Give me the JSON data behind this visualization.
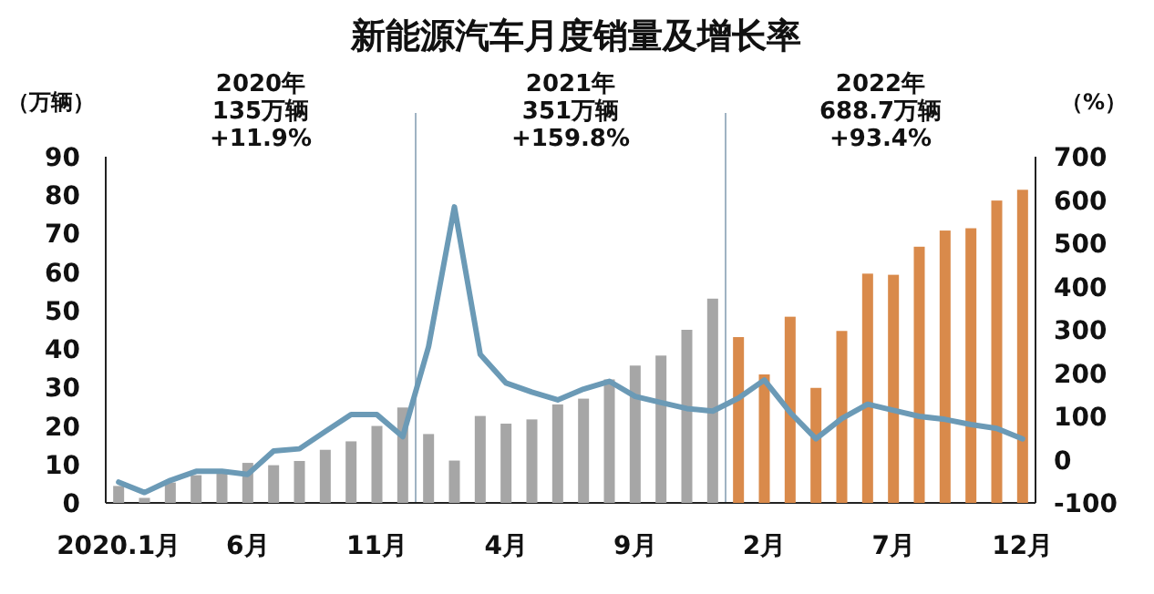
{
  "chart_data": {
    "type": "bar",
    "title": "新能源汽车月度销量及增长率",
    "ylabel": "（万辆）",
    "y2label": "（%）",
    "categories": [
      "2020.1月",
      null,
      null,
      null,
      null,
      "6月",
      null,
      null,
      null,
      null,
      "11月",
      null,
      null,
      null,
      null,
      "4月",
      null,
      null,
      null,
      null,
      "9月",
      null,
      null,
      null,
      null,
      "2月",
      null,
      null,
      null,
      null,
      "7月",
      null,
      null,
      null,
      null,
      "12月"
    ],
    "series": [
      {
        "values": [
          4.4,
          1.3,
          5.3,
          7.2,
          8.2,
          10.4,
          9.8,
          10.9,
          13.8,
          16,
          20,
          24.8,
          17.9,
          11,
          22.6,
          20.6,
          21.7,
          25.6,
          27.1,
          32.1,
          35.7,
          38.3,
          45,
          53.1,
          43.1,
          33.4,
          48.4,
          29.9,
          44.7,
          59.6,
          59.3,
          66.6,
          70.8,
          71.4,
          78.6,
          81.4
        ],
        "colors": [
          "#a6a6a6",
          "#a6a6a6",
          "#a6a6a6",
          "#a6a6a6",
          "#a6a6a6",
          "#a6a6a6",
          "#a6a6a6",
          "#a6a6a6",
          "#a6a6a6",
          "#a6a6a6",
          "#a6a6a6",
          "#a6a6a6",
          "#a6a6a6",
          "#a6a6a6",
          "#a6a6a6",
          "#a6a6a6",
          "#a6a6a6",
          "#a6a6a6",
          "#a6a6a6",
          "#a6a6a6",
          "#a6a6a6",
          "#a6a6a6",
          "#a6a6a6",
          "#a6a6a6",
          "#d98a4b",
          "#d98a4b",
          "#d98a4b",
          "#d98a4b",
          "#d98a4b",
          "#d98a4b",
          "#d98a4b",
          "#d98a4b",
          "#d98a4b",
          "#d98a4b",
          "#d98a4b",
          "#d98a4b"
        ]
      },
      {
        "type": "line",
        "axis": "y2",
        "color": "#6b9ab6",
        "values": [
          -52,
          -76,
          -48,
          -27,
          -27,
          -34,
          20,
          25,
          65,
          104,
          104,
          53,
          261,
          584,
          243,
          177,
          156,
          138,
          163,
          181,
          146,
          132,
          118,
          112,
          142,
          184,
          109,
          48,
          95,
          128,
          114,
          100,
          93,
          81,
          72,
          48
        ]
      }
    ],
    "ylim": [
      0,
      90
    ],
    "yticks": [
      0,
      10,
      20,
      30,
      40,
      50,
      60,
      70,
      80,
      90
    ],
    "y2lim": [
      -100,
      700
    ],
    "y2ticks": [
      -100,
      0,
      100,
      200,
      300,
      400,
      500,
      600,
      700
    ],
    "annotations": [
      "2020年",
      "135万辆",
      "+11.9%",
      "2021年",
      "351万辆",
      "+159.8%",
      "2022年",
      "688.7万辆",
      "+93.4%"
    ],
    "grid": false
  }
}
